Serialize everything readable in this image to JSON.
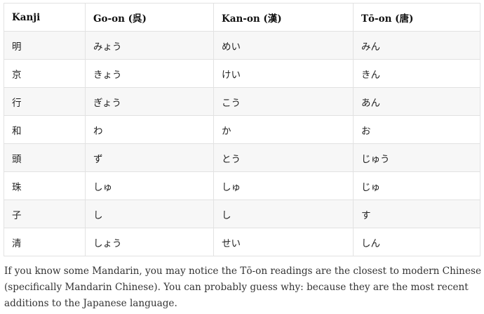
{
  "table": {
    "headers": [
      "Kanji",
      "Go-on (呉)",
      "Kan-on (漢)",
      "Tō-on (唐)"
    ],
    "rows": [
      [
        "明",
        "みょう",
        "めい",
        "みん"
      ],
      [
        "京",
        "きょう",
        "けい",
        "きん"
      ],
      [
        "行",
        "ぎょう",
        "こう",
        "あん"
      ],
      [
        "和",
        "わ",
        "か",
        "お"
      ],
      [
        "頭",
        "ず",
        "とう",
        "じゅう"
      ],
      [
        "珠",
        "しゅ",
        "しゅ",
        "じゅ"
      ],
      [
        "子",
        "し",
        "し",
        "す"
      ],
      [
        "清",
        "しょう",
        "せい",
        "しん"
      ]
    ]
  },
  "paragraph": "If you know some Mandarin, you may notice the Tō-on readings are the closest to modern Chinese (specifically Mandarin Chinese). You can probably guess why: because they are the most recent additions to the Japanese language."
}
